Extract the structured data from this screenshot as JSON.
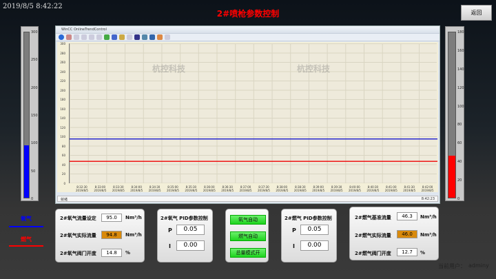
{
  "header": {
    "datetime": "2019/8/5 8:42:22",
    "title": "2#喷枪参数控制",
    "back_label": "返回"
  },
  "left_gauge": {
    "ticks": [
      "300",
      "250",
      "200",
      "150",
      "100",
      "50",
      "0"
    ],
    "max": 300,
    "value": 95,
    "color": "#0000ff"
  },
  "right_gauge": {
    "ticks": [
      "180",
      "160",
      "140",
      "120",
      "100",
      "80",
      "60",
      "40",
      "20",
      "0"
    ],
    "max": 180,
    "value": 46,
    "color": "#ff0000"
  },
  "trend": {
    "window_title": "WinCC OnlineTrendControl",
    "status": "就绪",
    "status_time": "8:42:23",
    "watermark": "杭控科技",
    "chart_data": {
      "type": "line",
      "ylim": [
        0,
        300
      ],
      "y_ticks": [
        "300",
        "280",
        "260",
        "240",
        "220",
        "200",
        "180",
        "160",
        "140",
        "120",
        "100",
        "80",
        "60",
        "40",
        "20",
        "0"
      ],
      "x_ticks": [
        "8:32:30",
        "8:33:00",
        "8:33:30",
        "8:34:00",
        "8:34:30",
        "8:35:00",
        "8:35:30",
        "8:36:00",
        "8:36:30",
        "8:37:00",
        "8:37:30",
        "8:38:00",
        "8:38:30",
        "8:39:00",
        "8:39:30",
        "8:40:00",
        "8:40:30",
        "8:41:00",
        "8:41:30",
        "8:42:00"
      ],
      "x_date": "2019/8/5",
      "series": [
        {
          "color": "#0000cc",
          "value": 95
        },
        {
          "color": "#ee0000",
          "value": 47
        }
      ]
    }
  },
  "legend": [
    {
      "label": "氧气",
      "color": "#0000ff"
    },
    {
      "label": "燃气",
      "color": "#ff0000"
    }
  ],
  "oxygen_panel": {
    "rows": [
      {
        "label": "2#氧气流量设定",
        "value": "95.0",
        "unit": "Nm³/h"
      },
      {
        "label": "2#氧气实际流量",
        "value": "94.8",
        "unit": "Nm³/h"
      },
      {
        "label": "2#氧气阀门开度",
        "value": "14.8",
        "unit": "%"
      }
    ]
  },
  "oxygen_pid": {
    "title": "2#氧气  PID参数控制",
    "p_label": "P",
    "p": "0.05",
    "i_label": "I",
    "i": "0.00"
  },
  "mode_buttons": [
    "氧气自动",
    "燃气自动",
    "总量模式开"
  ],
  "gas_pid": {
    "title": "2#燃气  PID参数控制",
    "p_label": "P",
    "p": "0.05",
    "i_label": "I",
    "i": "0.00"
  },
  "gas_panel": {
    "rows": [
      {
        "label": "2#燃气基准流量",
        "value": "46.3",
        "unit": "Nm³/h"
      },
      {
        "label": "2#燃气实际流量",
        "value": "46.0",
        "unit": "Nm³/h"
      },
      {
        "label": "2#燃气阀门开度",
        "value": "12.7",
        "unit": "%"
      }
    ]
  },
  "user": {
    "label": "当前用户：",
    "name": "adminy"
  }
}
